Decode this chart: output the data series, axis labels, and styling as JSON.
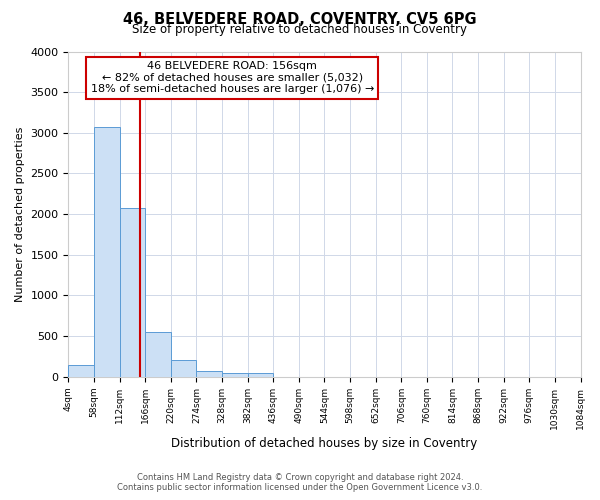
{
  "title": "46, BELVEDERE ROAD, COVENTRY, CV5 6PG",
  "subtitle": "Size of property relative to detached houses in Coventry",
  "xlabel": "Distribution of detached houses by size in Coventry",
  "ylabel": "Number of detached properties",
  "bar_color": "#cce0f5",
  "bar_edge_color": "#5b9bd5",
  "background_color": "#ffffff",
  "grid_color": "#d0d8e8",
  "bin_edges": [
    4,
    58,
    112,
    166,
    220,
    274,
    328,
    382,
    436,
    490,
    544,
    598,
    652,
    706,
    760,
    814,
    868,
    922,
    976,
    1030,
    1084
  ],
  "bar_heights": [
    150,
    3070,
    2070,
    555,
    210,
    75,
    50,
    50,
    0,
    0,
    0,
    0,
    0,
    0,
    0,
    0,
    0,
    0,
    0,
    0
  ],
  "property_size": 156,
  "vline_color": "#cc0000",
  "annotation_box_color": "#cc0000",
  "annotation_line1": "46 BELVEDERE ROAD: 156sqm",
  "annotation_line2": "← 82% of detached houses are smaller (5,032)",
  "annotation_line3": "18% of semi-detached houses are larger (1,076) →",
  "ylim": [
    0,
    4000
  ],
  "yticks": [
    0,
    500,
    1000,
    1500,
    2000,
    2500,
    3000,
    3500,
    4000
  ],
  "footer_line1": "Contains HM Land Registry data © Crown copyright and database right 2024.",
  "footer_line2": "Contains public sector information licensed under the Open Government Licence v3.0."
}
